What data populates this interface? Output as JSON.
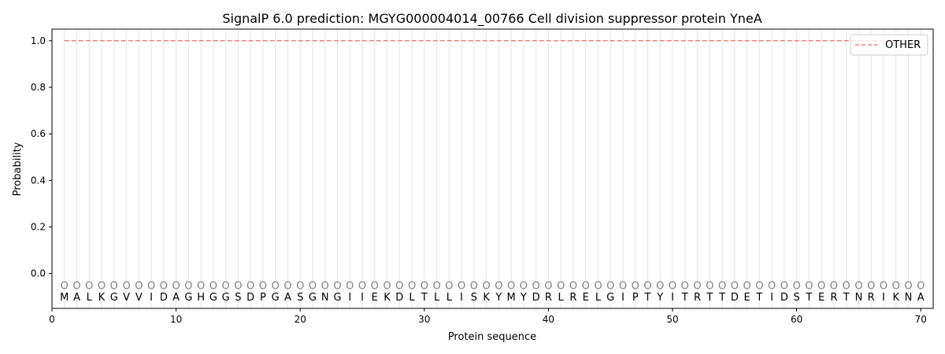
{
  "chart_data": {
    "type": "line",
    "title": "SignalP 6.0 prediction: MGYG000004014_00766 Cell division suppressor protein YneA",
    "xlabel": "Protein sequence",
    "ylabel": "Probability",
    "xlim": [
      0,
      71
    ],
    "ylim": [
      -0.15,
      1.05
    ],
    "x_ticks": [
      0,
      10,
      20,
      30,
      40,
      50,
      60,
      70
    ],
    "y_ticks": [
      0.0,
      0.2,
      0.4,
      0.6,
      0.8,
      1.0
    ],
    "y_tick_labels": [
      "0.0",
      "0.2",
      "0.4",
      "0.6",
      "0.8",
      "1.0"
    ],
    "sequence": [
      "M",
      "A",
      "L",
      "K",
      "G",
      "V",
      "V",
      "I",
      "D",
      "A",
      "G",
      "H",
      "G",
      "G",
      "S",
      "D",
      "P",
      "G",
      "A",
      "S",
      "G",
      "N",
      "G",
      "I",
      "I",
      "E",
      "K",
      "D",
      "L",
      "T",
      "L",
      "L",
      "I",
      "S",
      "K",
      "Y",
      "M",
      "Y",
      "D",
      "R",
      "L",
      "R",
      "E",
      "L",
      "G",
      "I",
      "P",
      "T",
      "Y",
      "I",
      "T",
      "R",
      "T",
      "T",
      "D",
      "E",
      "T",
      "I",
      "D",
      "S",
      "T",
      "E",
      "R",
      "T",
      "N",
      "R",
      "I",
      "K",
      "N",
      "A"
    ],
    "predicted_labels": [
      "O",
      "O",
      "O",
      "O",
      "O",
      "O",
      "O",
      "O",
      "O",
      "O",
      "O",
      "O",
      "O",
      "O",
      "O",
      "O",
      "O",
      "O",
      "O",
      "O",
      "O",
      "O",
      "O",
      "O",
      "O",
      "O",
      "O",
      "O",
      "O",
      "O",
      "O",
      "O",
      "O",
      "O",
      "O",
      "O",
      "O",
      "O",
      "O",
      "O",
      "O",
      "O",
      "O",
      "O",
      "O",
      "O",
      "O",
      "O",
      "O",
      "O",
      "O",
      "O",
      "O",
      "O",
      "O",
      "O",
      "O",
      "O",
      "O",
      "O",
      "O",
      "O",
      "O",
      "O",
      "O",
      "O",
      "O",
      "O",
      "O",
      "O"
    ],
    "series": [
      {
        "name": "OTHER",
        "color": "#f08080",
        "style": "dashed",
        "x_range": [
          1,
          70
        ],
        "values": [
          1,
          1,
          1,
          1,
          1,
          1,
          1,
          1,
          1,
          1,
          1,
          1,
          1,
          1,
          1,
          1,
          1,
          1,
          1,
          1,
          1,
          1,
          1,
          1,
          1,
          1,
          1,
          1,
          1,
          1,
          1,
          1,
          1,
          1,
          1,
          1,
          1,
          1,
          1,
          1,
          1,
          1,
          1,
          1,
          1,
          1,
          1,
          1,
          1,
          1,
          1,
          1,
          1,
          1,
          1,
          1,
          1,
          1,
          1,
          1,
          1,
          1,
          1,
          1,
          1,
          1,
          1,
          1,
          1,
          1
        ]
      }
    ],
    "grid": "vertical lines at each residue",
    "legend_position": "top-right"
  }
}
